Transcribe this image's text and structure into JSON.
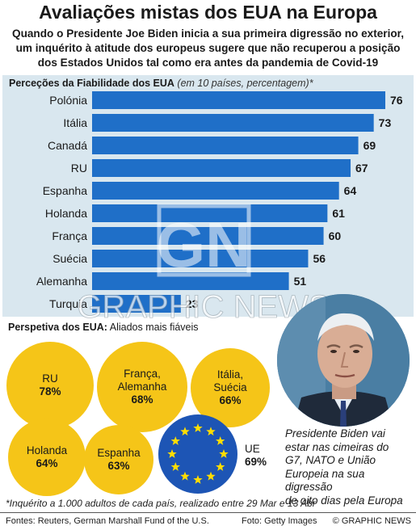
{
  "title": "Avaliações mistas dos EUA na Europa",
  "subtitle_lines": [
    "Quando o Presidente Joe Biden inicia a sua primeira digressão no exterior,",
    "um inquérito à atitude dos europeus sugere que não recuperou a posição",
    "dos Estados Unidos tal como era antes da pandemia de Covid-19"
  ],
  "chart_data": {
    "type": "bar",
    "orientation": "horizontal",
    "title": "Perceções da Fiabilidade dos EUA",
    "note": "(em 10 países, percentagem)*",
    "categories": [
      "Polónia",
      "Itália",
      "Canadá",
      "RU",
      "Espanha",
      "Holanda",
      "França",
      "Suécia",
      "Alemanha",
      "Turquia"
    ],
    "values": [
      76,
      73,
      69,
      67,
      64,
      61,
      60,
      56,
      51,
      23
    ],
    "xlim": [
      0,
      76
    ],
    "bar_color": "#1f6fc8",
    "panel_color": "#d9e7ef",
    "grid": false
  },
  "watermark": {
    "logo": "GN",
    "text": "GRAPHIC NEWS"
  },
  "perspective": {
    "heading_sc": "Perspetiva dos EUA:",
    "heading_rest": "Aliados mais fiáveis",
    "circle_color": "#f5c518",
    "allies": [
      {
        "lines": [
          "RU"
        ],
        "pct": "78%"
      },
      {
        "lines": [
          "França,",
          "Alemanha"
        ],
        "pct": "68%"
      },
      {
        "lines": [
          "Itália,",
          "Suécia"
        ],
        "pct": "66%"
      },
      {
        "lines": [
          "Holanda"
        ],
        "pct": "64%"
      },
      {
        "lines": [
          "Espanha"
        ],
        "pct": "63%"
      }
    ],
    "eu": {
      "label": "UE",
      "pct": "69%",
      "flag_color": "#1d55b5",
      "star_color": "#ffdd00"
    }
  },
  "photo": {
    "subject": "Joe Biden portrait"
  },
  "caption_lines": [
    "Presidente Biden vai",
    "estar nas cimeiras do",
    "G7, NATO e União",
    "Europeia na sua digressão",
    "de oito dias pela Europa"
  ],
  "footnote": "*Inquérito a 1.000 adultos de cada país, realizado entre 29 Mar e 13 Abr",
  "footer": {
    "sources": "Fontes: Reuters, German Marshall Fund of the U.S.",
    "photo": "Foto: Getty Images",
    "brand": "© GRAPHIC NEWS"
  }
}
